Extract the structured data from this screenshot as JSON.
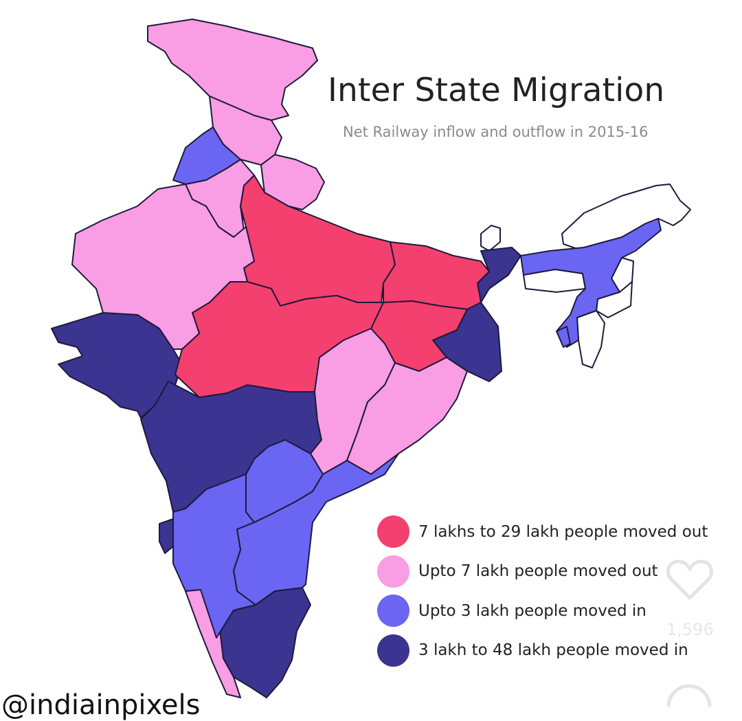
{
  "title": "Inter State Migration",
  "subtitle": "Net Railway inflow and outflow in 2015-16",
  "legend": [
    {
      "label": "7 lakhs to 29 lakh people moved out",
      "color": "#f4406e"
    },
    {
      "label": "Upto 7 lakh people moved out",
      "color": "#f99de4"
    },
    {
      "label": "Upto 3 lakh people moved in",
      "color": "#6a65f2"
    },
    {
      "label": "3 lakh to 48 lakh people moved in",
      "color": "#3b3490"
    }
  ],
  "map": {
    "no_data_color": "#ffffff",
    "regions": [
      {
        "id": "jammu-kashmir",
        "category": 1
      },
      {
        "id": "himachal-pradesh",
        "category": 1
      },
      {
        "id": "uttarakhand",
        "category": 1
      },
      {
        "id": "punjab",
        "category": 2
      },
      {
        "id": "haryana",
        "category": 1
      },
      {
        "id": "delhi",
        "category": 3
      },
      {
        "id": "rajasthan",
        "category": 1
      },
      {
        "id": "uttar-pradesh",
        "category": 0
      },
      {
        "id": "bihar",
        "category": 0
      },
      {
        "id": "madhya-pradesh",
        "category": 0
      },
      {
        "id": "jharkhand",
        "category": 0
      },
      {
        "id": "chhattisgarh",
        "category": 1
      },
      {
        "id": "odisha",
        "category": 1
      },
      {
        "id": "gujarat",
        "category": 3
      },
      {
        "id": "maharashtra",
        "category": 3
      },
      {
        "id": "west-bengal",
        "category": 3
      },
      {
        "id": "sikkim",
        "category": -1
      },
      {
        "id": "assam",
        "category": 2
      },
      {
        "id": "arunachal-pradesh",
        "category": -1
      },
      {
        "id": "meghalaya",
        "category": -1
      },
      {
        "id": "nagaland",
        "category": -1
      },
      {
        "id": "manipur",
        "category": -1
      },
      {
        "id": "mizoram",
        "category": -1
      },
      {
        "id": "tripura",
        "category": 2
      },
      {
        "id": "telangana",
        "category": 2
      },
      {
        "id": "andhra-pradesh",
        "category": 2
      },
      {
        "id": "karnataka",
        "category": 2
      },
      {
        "id": "goa",
        "category": 3
      },
      {
        "id": "kerala",
        "category": 1
      },
      {
        "id": "tamil-nadu",
        "category": 3
      }
    ]
  },
  "overlay": {
    "count": "1,596",
    "heart_icon": "heart-outline-icon"
  },
  "watermark": "@indiainpixels"
}
